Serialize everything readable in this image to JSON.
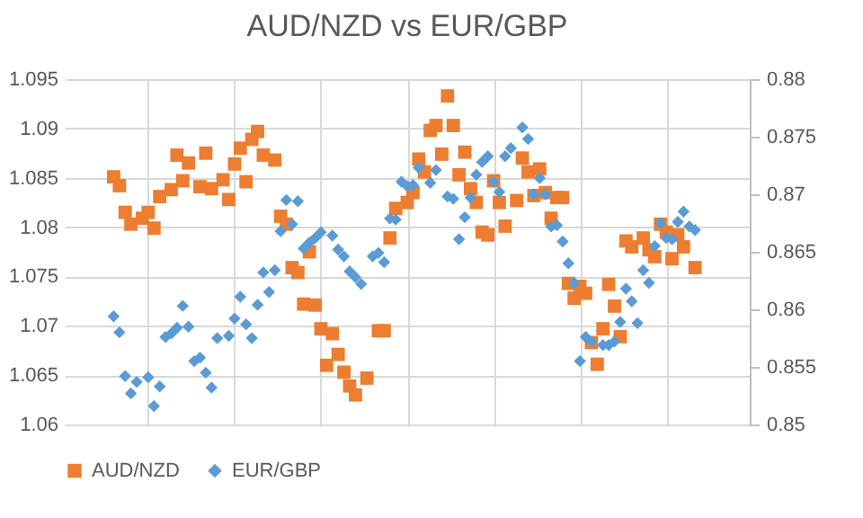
{
  "chart_data": {
    "type": "scatter",
    "title": "AUD/NZD vs EUR/GBP",
    "categories": [
      null,
      null,
      null,
      null,
      null,
      null,
      null,
      null,
      null,
      null,
      null,
      null,
      null,
      null,
      null,
      null,
      null,
      null,
      null,
      null,
      null,
      null,
      null,
      null,
      null,
      null,
      null,
      null,
      null,
      null,
      null,
      null,
      null,
      null,
      null,
      null,
      null,
      null,
      null,
      null,
      null,
      null,
      null,
      null,
      null,
      null,
      null,
      null,
      null,
      null,
      null,
      null,
      null,
      null,
      null,
      null,
      null,
      null,
      null,
      null,
      null,
      null,
      null,
      null,
      null,
      null,
      null,
      null,
      null,
      null,
      null,
      null,
      null,
      null,
      null,
      null,
      null,
      null,
      null,
      null,
      null,
      null,
      null,
      null,
      null,
      null,
      null,
      null,
      null,
      null,
      null,
      null,
      null,
      null,
      null,
      null,
      null,
      null,
      null,
      null,
      null,
      null,
      null,
      null,
      null,
      null,
      null,
      null,
      null,
      null,
      null,
      null,
      null,
      null,
      null,
      null,
      null,
      null,
      null
    ],
    "ylim": [
      1.06,
      1.095
    ],
    "yticks": [
      1.06,
      1.065,
      1.07,
      1.075,
      1.08,
      1.085,
      1.09,
      1.095
    ],
    "y2lim": [
      0.85,
      0.88
    ],
    "y2ticks": [
      0.85,
      0.855,
      0.86,
      0.865,
      0.87,
      0.875,
      0.88
    ],
    "grid": true,
    "legend": "bottom",
    "series": [
      {
        "name": "AUD/NZD",
        "color": "#ed7d31",
        "marker": "square",
        "values": [
          null,
          null,
          null,
          null,
          null,
          null,
          null,
          null,
          1.0851,
          1.0842,
          1.0815,
          1.0803,
          null,
          1.0809,
          1.0815,
          1.0799,
          1.0831,
          null,
          1.0838,
          1.0873,
          1.0847,
          1.0865,
          null,
          1.0841,
          1.0875,
          1.0839,
          null,
          1.0848,
          1.0828,
          1.0864,
          1.088,
          1.0846,
          1.0889,
          1.0897,
          1.0873,
          null,
          1.0868,
          1.0811,
          1.0803,
          1.0759,
          1.0754,
          1.0722,
          1.0775,
          1.0721,
          1.0697,
          1.066,
          1.0692,
          1.0671,
          1.0653,
          1.0639,
          1.063,
          null,
          1.0647,
          null,
          1.0695,
          1.0695,
          1.0789,
          1.0819,
          null,
          1.0825,
          1.0835,
          1.0869,
          1.0856,
          1.0898,
          1.0903,
          1.0874,
          1.0933,
          1.0903,
          1.0853,
          1.0876,
          1.0839,
          1.0825,
          1.0795,
          1.0792,
          1.0847,
          1.0825,
          1.0801,
          null,
          1.0827,
          1.087,
          1.0856,
          1.0832,
          1.0859,
          1.0835,
          1.0809,
          1.083,
          1.083,
          1.0743,
          1.0728,
          1.074,
          1.0733,
          1.0683,
          1.0661,
          1.0697,
          1.0742,
          1.072,
          1.0689,
          1.0786,
          1.078,
          null,
          1.0789,
          1.0777,
          1.077,
          1.0803,
          1.0795,
          1.0768,
          1.0792,
          1.078,
          null,
          1.0759,
          null,
          null,
          null,
          null,
          null,
          null,
          null,
          null,
          null
        ]
      },
      {
        "name": "EUR/GBP",
        "color": "#5b9bd5",
        "marker": "diamond",
        "axis": "y2",
        "values": [
          null,
          null,
          null,
          null,
          null,
          null,
          null,
          null,
          0.8594,
          0.858,
          0.8542,
          0.8527,
          0.8537,
          null,
          0.8541,
          0.8516,
          0.8533,
          0.8576,
          0.8579,
          0.8584,
          0.8603,
          0.8585,
          0.8555,
          0.8558,
          0.8545,
          0.8532,
          0.8575,
          null,
          0.8577,
          0.8592,
          0.8611,
          0.8587,
          0.8575,
          0.8604,
          0.8632,
          0.8615,
          0.8634,
          0.8668,
          0.8695,
          0.8674,
          0.8694,
          0.8653,
          0.8658,
          0.8662,
          0.8667,
          null,
          0.8664,
          0.8652,
          0.8646,
          0.8633,
          0.8628,
          0.8622,
          null,
          0.8646,
          0.8649,
          0.8641,
          0.8679,
          0.8678,
          0.8711,
          0.8707,
          0.8708,
          0.8723,
          null,
          0.871,
          0.8721,
          null,
          0.8698,
          0.8696,
          0.8661,
          0.868,
          0.8697,
          0.8717,
          0.8728,
          0.8733,
          0.8711,
          0.8702,
          0.8733,
          0.874,
          null,
          0.8758,
          0.8748,
          0.87,
          0.8714,
          0.87,
          0.8672,
          0.8673,
          0.8659,
          0.864,
          0.8623,
          0.8555,
          0.8576,
          0.8572,
          null,
          0.8569,
          0.8569,
          0.8572,
          0.8589,
          0.8618,
          0.8607,
          0.8588,
          0.8634,
          0.8623,
          0.8655,
          0.8675,
          0.8662,
          0.8661,
          0.8676,
          0.8685,
          0.8672,
          0.8669,
          null,
          null,
          null,
          null,
          null,
          null,
          null,
          null,
          null
        ]
      }
    ]
  }
}
